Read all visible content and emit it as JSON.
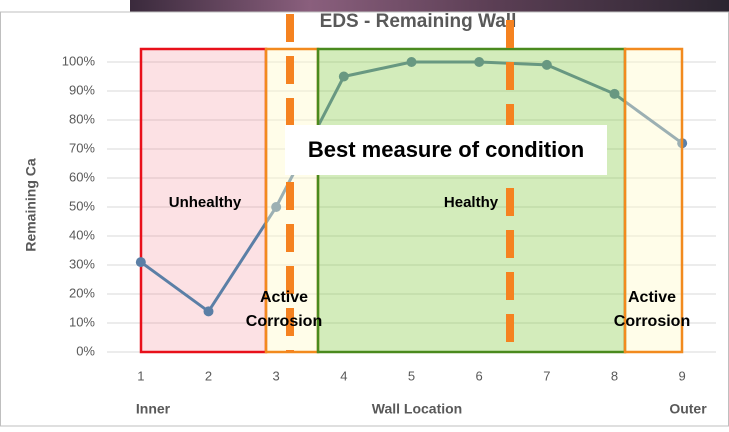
{
  "chart_data": {
    "type": "line",
    "title": "EDS - Remaining Wall",
    "y_label": "Remaining Ca",
    "x_label": "Wall Location",
    "x_end_labels": [
      "Inner",
      "Outer"
    ],
    "x": [
      1,
      2,
      3,
      4,
      5,
      6,
      7,
      8,
      9
    ],
    "series": [
      {
        "name": "Remaining Ca",
        "color": "#5b7fa6",
        "values": [
          31,
          14,
          50,
          95,
          100,
          100,
          99,
          89,
          72
        ]
      }
    ],
    "xlim": [
      0.5,
      9.5
    ],
    "xticks": [
      1,
      2,
      3,
      4,
      5,
      6,
      7,
      8,
      9
    ],
    "ylim": [
      0,
      100
    ],
    "yticks": [
      {
        "value": 0,
        "label": "0%"
      },
      {
        "value": 10,
        "label": "10%"
      },
      {
        "value": 20,
        "label": "20%"
      },
      {
        "value": 30,
        "label": "30%"
      },
      {
        "value": 40,
        "label": "40%"
      },
      {
        "value": 50,
        "label": "50%"
      },
      {
        "value": 60,
        "label": "60%"
      },
      {
        "value": 70,
        "label": "70%"
      },
      {
        "value": 80,
        "label": "80%"
      },
      {
        "value": 90,
        "label": "90%"
      },
      {
        "value": 100,
        "label": "100%"
      }
    ],
    "grid": true,
    "annotations": [
      "Unhealthy",
      "Active Corrosion",
      "Healthy",
      "Active Corrosion",
      "Best measure of condition"
    ]
  }
}
